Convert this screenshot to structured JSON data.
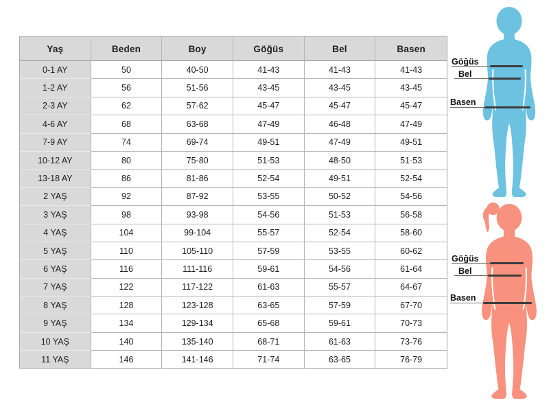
{
  "colors": {
    "header_bg": "#d9d9d9",
    "row_bg": "#ffffff",
    "text": "#1d1d1d",
    "figure_blue": "#6cc2e0",
    "figure_pink": "#f8917e",
    "line_dark": "#3c3c3c",
    "line_thin": "#6e6e6e"
  },
  "labels": {
    "chest": "Göğüs",
    "waist": "Bel",
    "hips": "Basen"
  },
  "table": {
    "columns": [
      "Yaş",
      "Beden",
      "Boy",
      "Göğüs",
      "Bel",
      "Basen"
    ],
    "rows": [
      [
        "0-1 AY",
        "50",
        "40-50",
        "41-43",
        "41-43",
        "41-43"
      ],
      [
        "1-2 AY",
        "56",
        "51-56",
        "43-45",
        "43-45",
        "43-45"
      ],
      [
        "2-3 AY",
        "62",
        "57-62",
        "45-47",
        "45-47",
        "45-47"
      ],
      [
        "4-6 AY",
        "68",
        "63-68",
        "47-49",
        "46-48",
        "47-49"
      ],
      [
        "7-9 AY",
        "74",
        "69-74",
        "49-51",
        "47-49",
        "49-51"
      ],
      [
        "10-12 AY",
        "80",
        "75-80",
        "51-53",
        "48-50",
        "51-53"
      ],
      [
        "13-18 AY",
        "86",
        "81-86",
        "52-54",
        "49-51",
        "52-54"
      ],
      [
        "2 YAŞ",
        "92",
        "87-92",
        "53-55",
        "50-52",
        "54-56"
      ],
      [
        "3 YAŞ",
        "98",
        "93-98",
        "54-56",
        "51-53",
        "56-58"
      ],
      [
        "4 YAŞ",
        "104",
        "99-104",
        "55-57",
        "52-54",
        "58-60"
      ],
      [
        "5 YAŞ",
        "110",
        "105-110",
        "57-59",
        "53-55",
        "60-62"
      ],
      [
        "6 YAŞ",
        "116",
        "111-116",
        "59-61",
        "54-56",
        "61-64"
      ],
      [
        "7 YAŞ",
        "122",
        "117-122",
        "61-63",
        "55-57",
        "64-67"
      ],
      [
        "8 YAŞ",
        "128",
        "123-128",
        "63-65",
        "57-59",
        "67-70"
      ],
      [
        "9 YAŞ",
        "134",
        "129-134",
        "65-68",
        "59-61",
        "70-73"
      ],
      [
        "10 YAŞ",
        "140",
        "135-140",
        "68-71",
        "61-63",
        "73-76"
      ],
      [
        "11 YAŞ",
        "146",
        "141-146",
        "71-74",
        "63-65",
        "76-79"
      ]
    ]
  }
}
